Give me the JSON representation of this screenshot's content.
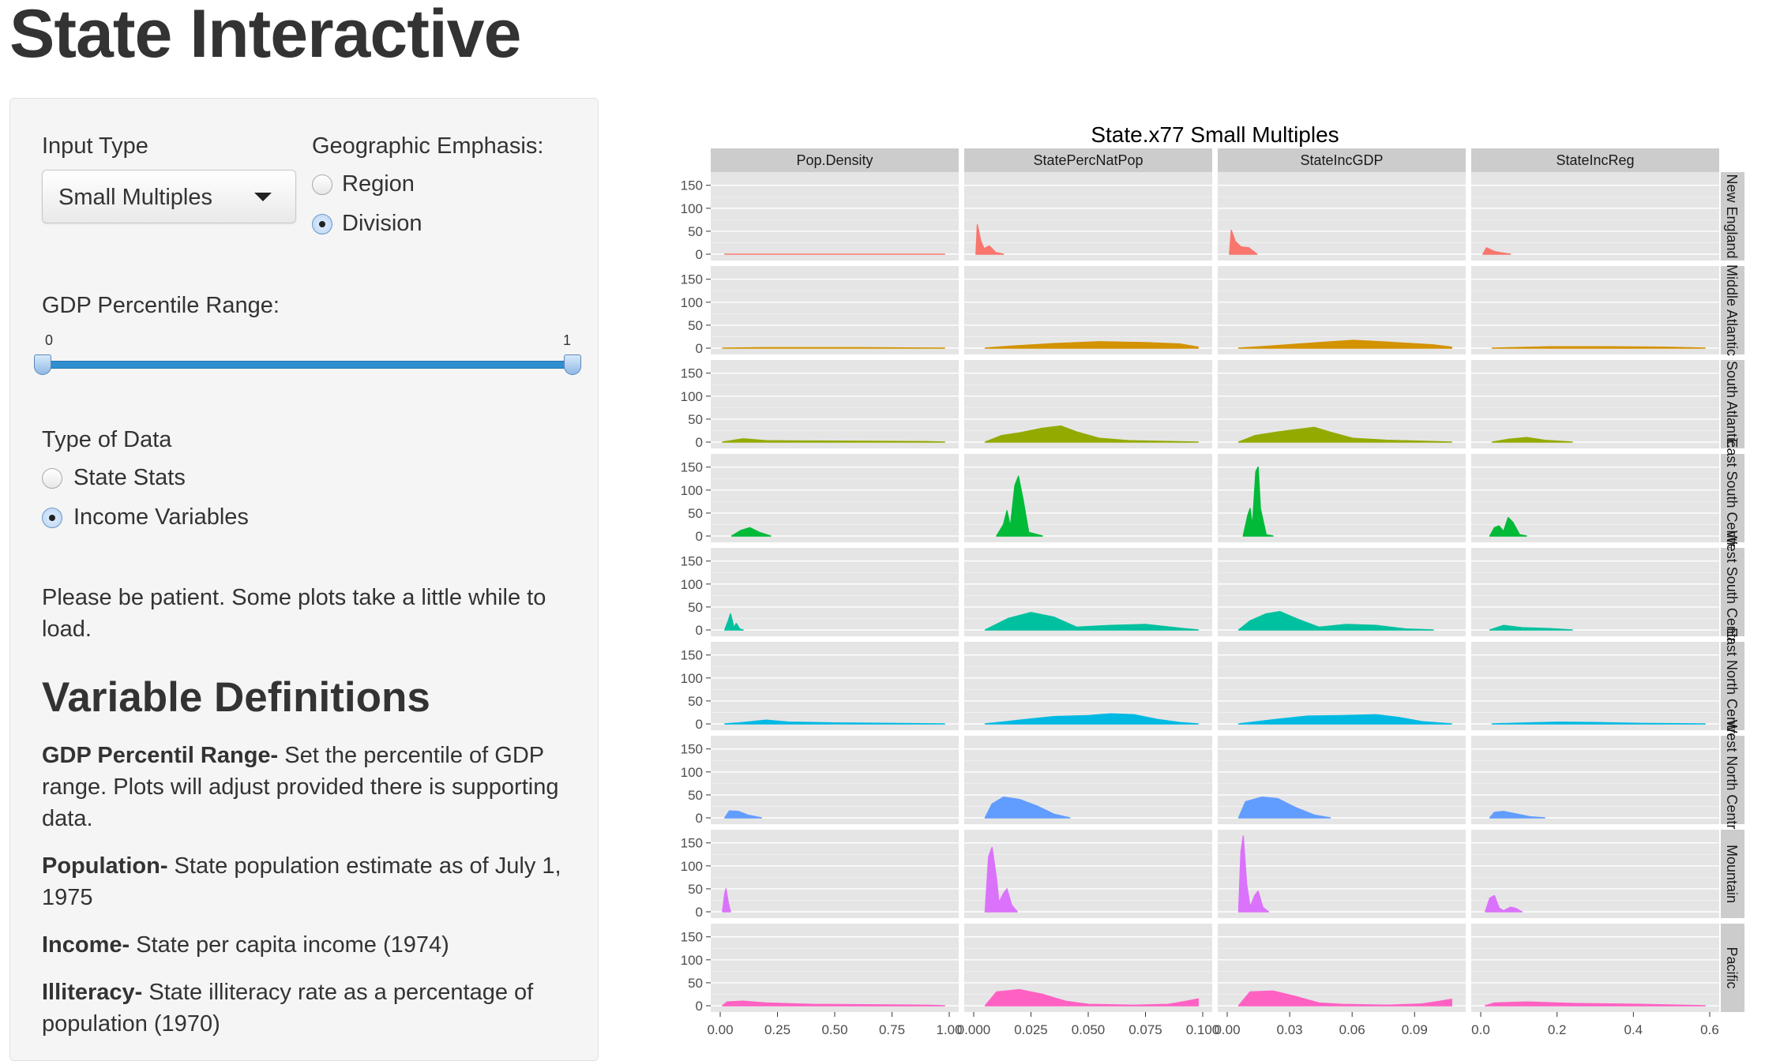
{
  "page": {
    "title": "State Interactive"
  },
  "sidebar": {
    "input_type": {
      "label": "Input Type",
      "selected": "Small Multiples"
    },
    "geo_emphasis": {
      "label": "Geographic Emphasis:",
      "options": [
        {
          "label": "Region",
          "selected": false
        },
        {
          "label": "Division",
          "selected": true
        }
      ]
    },
    "gdp_range": {
      "label": "GDP Percentile Range:",
      "min_label": "0",
      "max_label": "1",
      "low": 0,
      "high": 1
    },
    "data_type": {
      "label": "Type of Data",
      "options": [
        {
          "label": "State Stats",
          "selected": false
        },
        {
          "label": "Income Variables",
          "selected": true
        }
      ]
    },
    "patience_note": "Please be patient. Some plots take a little while to load.",
    "definitions": {
      "heading": "Variable Definitions",
      "items": [
        {
          "term": "GDP Percentil Range-",
          "text": " Set the percentile of GDP range. Plots will adjust provided there is supporting data."
        },
        {
          "term": "Population-",
          "text": " State population estimate as of July 1, 1975"
        },
        {
          "term": "Income-",
          "text": " State per capita income (1974)"
        },
        {
          "term": "Illiteracy-",
          "text": " State illiteracy rate as a percentage of population (1970)"
        }
      ]
    }
  },
  "chart_data": {
    "type": "area",
    "title": "State.x77 Small Multiples",
    "columns": [
      "Pop.Density",
      "StatePercNatPop",
      "StateIncGDP",
      "StateIncReg"
    ],
    "rows": [
      {
        "label": "New England",
        "color": "#F8766D"
      },
      {
        "label": "Middle Atlantic",
        "color": "#D39200"
      },
      {
        "label": "South Atlantic",
        "color": "#93AA00"
      },
      {
        "label": "East South Central",
        "color": "#00BA38"
      },
      {
        "label": "West South Central",
        "color": "#00C19F"
      },
      {
        "label": "East North Central",
        "color": "#00B9E3"
      },
      {
        "label": "West North Central",
        "color": "#619CFF"
      },
      {
        "label": "Mountain",
        "color": "#DB72FB"
      },
      {
        "label": "Pacific",
        "color": "#FF61C3"
      }
    ],
    "ylim": [
      0,
      165
    ],
    "y_ticks": [
      "150",
      "100",
      "50",
      "0"
    ],
    "x_axes": [
      {
        "range": [
          0,
          1
        ],
        "ticks": [
          0,
          0.25,
          0.5,
          0.75,
          1
        ],
        "labels": [
          "0.00",
          "0.25",
          "0.50",
          "0.75",
          "1.00"
        ]
      },
      {
        "range": [
          0,
          0.1
        ],
        "ticks": [
          0,
          0.025,
          0.05,
          0.075,
          0.1
        ],
        "labels": [
          "0.000",
          "0.025",
          "0.050",
          "0.075",
          "0.100"
        ]
      },
      {
        "range": [
          0,
          0.11
        ],
        "ticks": [
          0,
          0.03,
          0.06,
          0.09
        ],
        "labels": [
          "0.00",
          "0.03",
          "0.06",
          "0.09"
        ]
      },
      {
        "range": [
          0,
          0.6
        ],
        "ticks": [
          0,
          0.2,
          0.4,
          0.6
        ],
        "labels": [
          "0.0",
          "0.2",
          "0.4",
          "0.6"
        ]
      }
    ],
    "densities": [
      [
        [
          [
            0.02,
            0
          ],
          [
            0.98,
            0
          ]
        ],
        [
          [
            0.01,
            0
          ],
          [
            0.016,
            64
          ],
          [
            0.03,
            30
          ],
          [
            0.045,
            12
          ],
          [
            0.068,
            18
          ],
          [
            0.095,
            4
          ],
          [
            0.13,
            0
          ]
        ],
        [
          [
            0.01,
            0
          ],
          [
            0.018,
            52
          ],
          [
            0.035,
            28
          ],
          [
            0.06,
            16
          ],
          [
            0.095,
            14
          ],
          [
            0.13,
            0
          ]
        ],
        [
          [
            0.01,
            0
          ],
          [
            0.025,
            14
          ],
          [
            0.06,
            6
          ],
          [
            0.09,
            3
          ],
          [
            0.13,
            0
          ]
        ]
      ],
      [
        [
          [
            0.01,
            0
          ],
          [
            0.2,
            1
          ],
          [
            0.6,
            1
          ],
          [
            0.98,
            0
          ]
        ],
        [
          [
            0.05,
            0
          ],
          [
            0.15,
            4
          ],
          [
            0.35,
            10
          ],
          [
            0.55,
            14
          ],
          [
            0.75,
            12
          ],
          [
            0.9,
            9
          ],
          [
            0.98,
            2
          ]
        ],
        [
          [
            0.05,
            0
          ],
          [
            0.2,
            5
          ],
          [
            0.4,
            12
          ],
          [
            0.55,
            17
          ],
          [
            0.7,
            13
          ],
          [
            0.9,
            7
          ],
          [
            0.98,
            2
          ]
        ],
        [
          [
            0.05,
            0
          ],
          [
            0.3,
            3
          ],
          [
            0.55,
            3
          ],
          [
            0.8,
            2
          ],
          [
            0.98,
            0
          ]
        ]
      ],
      [
        [
          [
            0.01,
            0
          ],
          [
            0.1,
            7
          ],
          [
            0.2,
            3
          ],
          [
            0.5,
            2
          ],
          [
            0.9,
            1
          ],
          [
            0.98,
            0
          ]
        ],
        [
          [
            0.05,
            0
          ],
          [
            0.12,
            14
          ],
          [
            0.2,
            20
          ],
          [
            0.3,
            30
          ],
          [
            0.38,
            35
          ],
          [
            0.45,
            22
          ],
          [
            0.55,
            8
          ],
          [
            0.68,
            3
          ],
          [
            0.98,
            0
          ]
        ],
        [
          [
            0.05,
            0
          ],
          [
            0.12,
            14
          ],
          [
            0.22,
            22
          ],
          [
            0.3,
            27
          ],
          [
            0.38,
            32
          ],
          [
            0.46,
            20
          ],
          [
            0.55,
            8
          ],
          [
            0.7,
            4
          ],
          [
            0.98,
            0
          ]
        ],
        [
          [
            0.05,
            0
          ],
          [
            0.12,
            6
          ],
          [
            0.2,
            10
          ],
          [
            0.28,
            4
          ],
          [
            0.4,
            0
          ]
        ]
      ],
      [
        [
          [
            0.05,
            0
          ],
          [
            0.09,
            12
          ],
          [
            0.13,
            18
          ],
          [
            0.17,
            8
          ],
          [
            0.22,
            0
          ]
        ],
        [
          [
            0.1,
            0
          ],
          [
            0.13,
            25
          ],
          [
            0.145,
            55
          ],
          [
            0.16,
            20
          ],
          [
            0.18,
            110
          ],
          [
            0.195,
            130
          ],
          [
            0.215,
            80
          ],
          [
            0.24,
            8
          ],
          [
            0.3,
            0
          ]
        ],
        [
          [
            0.07,
            0
          ],
          [
            0.09,
            45
          ],
          [
            0.1,
            60
          ],
          [
            0.11,
            20
          ],
          [
            0.125,
            140
          ],
          [
            0.135,
            150
          ],
          [
            0.145,
            60
          ],
          [
            0.17,
            3
          ],
          [
            0.2,
            0
          ]
        ],
        [
          [
            0.04,
            0
          ],
          [
            0.06,
            18
          ],
          [
            0.08,
            22
          ],
          [
            0.1,
            10
          ],
          [
            0.12,
            40
          ],
          [
            0.14,
            30
          ],
          [
            0.17,
            3
          ],
          [
            0.2,
            0
          ]
        ]
      ],
      [
        [
          [
            0.02,
            0
          ],
          [
            0.035,
            20
          ],
          [
            0.045,
            35
          ],
          [
            0.06,
            5
          ],
          [
            0.07,
            14
          ],
          [
            0.085,
            2
          ],
          [
            0.1,
            0
          ]
        ],
        [
          [
            0.05,
            0
          ],
          [
            0.15,
            25
          ],
          [
            0.25,
            38
          ],
          [
            0.35,
            28
          ],
          [
            0.45,
            6
          ],
          [
            0.6,
            10
          ],
          [
            0.75,
            12
          ],
          [
            0.9,
            4
          ],
          [
            0.98,
            0
          ]
        ],
        [
          [
            0.05,
            0
          ],
          [
            0.1,
            20
          ],
          [
            0.17,
            35
          ],
          [
            0.23,
            40
          ],
          [
            0.3,
            25
          ],
          [
            0.4,
            6
          ],
          [
            0.52,
            12
          ],
          [
            0.65,
            10
          ],
          [
            0.78,
            2
          ],
          [
            0.9,
            0
          ]
        ],
        [
          [
            0.04,
            0
          ],
          [
            0.1,
            10
          ],
          [
            0.18,
            5
          ],
          [
            0.3,
            3
          ],
          [
            0.4,
            0
          ]
        ]
      ],
      [
        [
          [
            0.02,
            0
          ],
          [
            0.1,
            3
          ],
          [
            0.2,
            8
          ],
          [
            0.3,
            4
          ],
          [
            0.5,
            2
          ],
          [
            0.98,
            0
          ]
        ],
        [
          [
            0.05,
            0
          ],
          [
            0.2,
            8
          ],
          [
            0.35,
            16
          ],
          [
            0.5,
            18
          ],
          [
            0.6,
            22
          ],
          [
            0.7,
            20
          ],
          [
            0.8,
            10
          ],
          [
            0.9,
            3
          ],
          [
            0.98,
            0
          ]
        ],
        [
          [
            0.05,
            0
          ],
          [
            0.2,
            9
          ],
          [
            0.35,
            17
          ],
          [
            0.5,
            18
          ],
          [
            0.65,
            20
          ],
          [
            0.75,
            14
          ],
          [
            0.85,
            5
          ],
          [
            0.98,
            0
          ]
        ],
        [
          [
            0.05,
            0
          ],
          [
            0.2,
            2
          ],
          [
            0.35,
            4
          ],
          [
            0.5,
            3
          ],
          [
            0.7,
            1
          ],
          [
            0.98,
            0
          ]
        ]
      ],
      [
        [
          [
            0.02,
            0
          ],
          [
            0.04,
            15
          ],
          [
            0.08,
            14
          ],
          [
            0.12,
            6
          ],
          [
            0.18,
            0
          ]
        ],
        [
          [
            0.05,
            0
          ],
          [
            0.08,
            30
          ],
          [
            0.13,
            45
          ],
          [
            0.2,
            40
          ],
          [
            0.28,
            25
          ],
          [
            0.35,
            8
          ],
          [
            0.42,
            0
          ]
        ],
        [
          [
            0.05,
            0
          ],
          [
            0.08,
            35
          ],
          [
            0.15,
            45
          ],
          [
            0.22,
            42
          ],
          [
            0.3,
            22
          ],
          [
            0.38,
            6
          ],
          [
            0.45,
            0
          ]
        ],
        [
          [
            0.04,
            0
          ],
          [
            0.06,
            12
          ],
          [
            0.1,
            14
          ],
          [
            0.16,
            8
          ],
          [
            0.22,
            2
          ],
          [
            0.28,
            0
          ]
        ]
      ],
      [
        [
          [
            0.01,
            0
          ],
          [
            0.02,
            40
          ],
          [
            0.025,
            50
          ],
          [
            0.035,
            20
          ],
          [
            0.045,
            0
          ]
        ],
        [
          [
            0.05,
            0
          ],
          [
            0.065,
            120
          ],
          [
            0.08,
            140
          ],
          [
            0.1,
            70
          ],
          [
            0.11,
            20
          ],
          [
            0.13,
            40
          ],
          [
            0.145,
            50
          ],
          [
            0.165,
            15
          ],
          [
            0.19,
            0
          ]
        ],
        [
          [
            0.05,
            0
          ],
          [
            0.06,
            130
          ],
          [
            0.07,
            165
          ],
          [
            0.085,
            60
          ],
          [
            0.1,
            10
          ],
          [
            0.12,
            35
          ],
          [
            0.135,
            45
          ],
          [
            0.155,
            10
          ],
          [
            0.18,
            0
          ]
        ],
        [
          [
            0.02,
            0
          ],
          [
            0.04,
            30
          ],
          [
            0.06,
            35
          ],
          [
            0.08,
            8
          ],
          [
            0.1,
            2
          ],
          [
            0.13,
            10
          ],
          [
            0.15,
            8
          ],
          [
            0.18,
            0
          ]
        ]
      ],
      [
        [
          [
            0.01,
            0
          ],
          [
            0.03,
            8
          ],
          [
            0.1,
            10
          ],
          [
            0.2,
            6
          ],
          [
            0.4,
            3
          ],
          [
            0.9,
            1
          ],
          [
            0.98,
            0
          ]
        ],
        [
          [
            0.05,
            0
          ],
          [
            0.1,
            30
          ],
          [
            0.2,
            35
          ],
          [
            0.3,
            25
          ],
          [
            0.4,
            10
          ],
          [
            0.5,
            3
          ],
          [
            0.7,
            1
          ],
          [
            0.85,
            3
          ],
          [
            0.93,
            10
          ],
          [
            0.98,
            15
          ]
        ],
        [
          [
            0.05,
            0
          ],
          [
            0.1,
            30
          ],
          [
            0.2,
            32
          ],
          [
            0.3,
            20
          ],
          [
            0.4,
            6
          ],
          [
            0.5,
            3
          ],
          [
            0.7,
            1
          ],
          [
            0.85,
            4
          ],
          [
            0.93,
            10
          ],
          [
            0.98,
            14
          ]
        ],
        [
          [
            0.02,
            0
          ],
          [
            0.06,
            6
          ],
          [
            0.2,
            8
          ],
          [
            0.4,
            5
          ],
          [
            0.7,
            3
          ],
          [
            0.98,
            0
          ]
        ]
      ]
    ]
  }
}
